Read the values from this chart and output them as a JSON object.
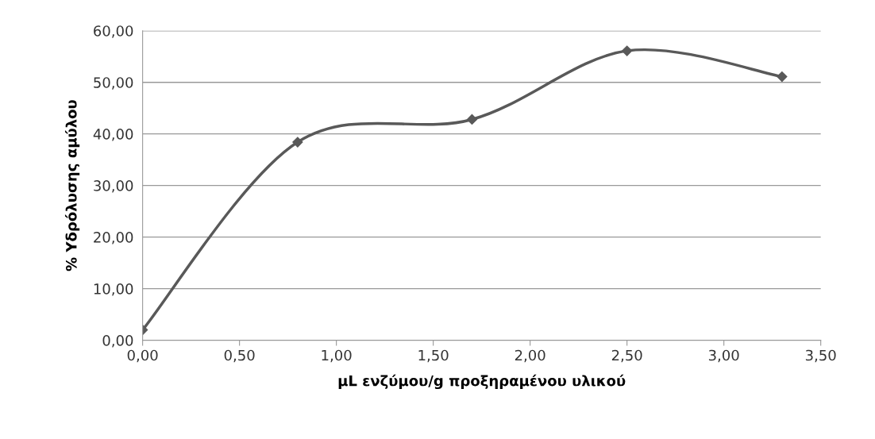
{
  "chart_data": {
    "type": "line",
    "xlabel": "μL ενζύμου/g προξηραμένου υλικού",
    "ylabel": "% Υδρόλυσης αμύλου",
    "x": [
      0,
      0.8,
      1.7,
      2.5,
      3.3
    ],
    "series": [
      {
        "color": "#595959",
        "values": [
          2.0,
          38.4,
          42.8,
          56.1,
          51.1
        ]
      }
    ],
    "xlim": [
      0,
      3.5
    ],
    "ylim": [
      0,
      60
    ],
    "xticks": [
      {
        "value": 0,
        "label": "0,00"
      },
      {
        "value": 0.5,
        "label": "0,50"
      },
      {
        "value": 1,
        "label": "1,00"
      },
      {
        "value": 1.5,
        "label": "1,50"
      },
      {
        "value": 2,
        "label": "2,00"
      },
      {
        "value": 2.5,
        "label": "2,50"
      },
      {
        "value": 3,
        "label": "3,00"
      },
      {
        "value": 3.5,
        "label": "3,50"
      }
    ],
    "yticks": [
      {
        "value": 0,
        "label": "0,00"
      },
      {
        "value": 10,
        "label": "10,00"
      },
      {
        "value": 20,
        "label": "20,00"
      },
      {
        "value": 30,
        "label": "30,00"
      },
      {
        "value": 40,
        "label": "40,00"
      },
      {
        "value": 50,
        "label": "50,00"
      },
      {
        "value": 60,
        "label": "60,00"
      }
    ],
    "grid": "y",
    "marker": "diamond",
    "line_style": "solid",
    "legend": false
  }
}
